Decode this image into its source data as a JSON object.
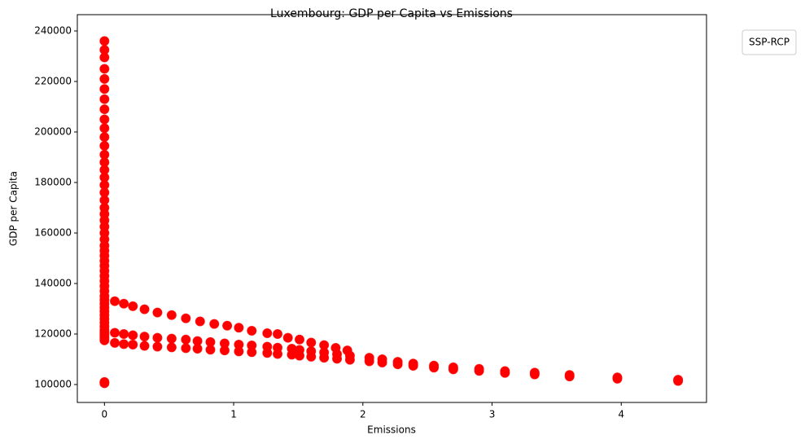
{
  "chart_data": {
    "type": "scatter",
    "title": "Luxembourg: GDP per Capita vs Emissions",
    "x_label": "Emissions",
    "y_label": "GDP per Capita",
    "legend_title": "SSP-RCP",
    "legend_position": "outside upper right",
    "color": "#ff0000",
    "xlim": [
      -0.21,
      4.66
    ],
    "xticks": [
      0,
      1,
      2,
      3,
      4
    ],
    "ylim": [
      92900,
      246450
    ],
    "yticks": [
      100000,
      120000,
      140000,
      160000,
      180000,
      200000,
      220000,
      240000
    ],
    "x": [
      0,
      0,
      0,
      0,
      0,
      0,
      0,
      0,
      0,
      0,
      0,
      0,
      0,
      0,
      0,
      0,
      0,
      0,
      0,
      0,
      0,
      0,
      0,
      0,
      0,
      0,
      0,
      0,
      0,
      0,
      0,
      0,
      0,
      0,
      0,
      0,
      0,
      0,
      0,
      0,
      0,
      0,
      0,
      0,
      0,
      0,
      0,
      0,
      0,
      0,
      0,
      0.08,
      0.15,
      0.22,
      0.31,
      0.41,
      0.52,
      0.63,
      0.74,
      0.85,
      0.95,
      1.04,
      1.14,
      1.26,
      1.34,
      1.42,
      1.51,
      1.6,
      1.7,
      1.79,
      1.88,
      0.08,
      0.15,
      0.22,
      0.31,
      0.41,
      0.52,
      0.63,
      0.72,
      0.82,
      0.93,
      1.04,
      1.14,
      1.26,
      1.34,
      1.45,
      1.51,
      1.6,
      1.7,
      1.8,
      1.9,
      2.05,
      2.15,
      2.27,
      2.39,
      2.55,
      2.7,
      2.9,
      3.1,
      3.33,
      3.6,
      3.97,
      4.44,
      0.08,
      0.15,
      0.22,
      0.31,
      0.41,
      0.52,
      0.63,
      0.72,
      0.82,
      0.93,
      1.04,
      1.14,
      1.26,
      1.34,
      1.45,
      1.51,
      1.6,
      1.7,
      1.8,
      1.9,
      2.05,
      2.15,
      2.27,
      2.39,
      2.55,
      2.7,
      2.9,
      3.1,
      3.33,
      3.6,
      3.97,
      4.44
    ],
    "values": [
      100500,
      101000,
      117500,
      118500,
      119500,
      120500,
      121500,
      123000,
      124500,
      126000,
      127500,
      129000,
      130500,
      132000,
      133500,
      135000,
      137000,
      139000,
      141000,
      143000,
      145000,
      147000,
      149000,
      151000,
      153000,
      155000,
      157500,
      160000,
      162500,
      165000,
      167500,
      170000,
      173000,
      176000,
      179000,
      182000,
      185000,
      188000,
      191000,
      194500,
      198000,
      201500,
      205000,
      209000,
      213000,
      217000,
      221000,
      225000,
      229500,
      232500,
      236000,
      133000,
      132000,
      131000,
      129800,
      128500,
      127500,
      126200,
      125000,
      124000,
      123300,
      122500,
      121300,
      120300,
      120000,
      118500,
      117800,
      116600,
      115600,
      114500,
      113500,
      120500,
      120000,
      119500,
      119000,
      118500,
      118200,
      117800,
      117200,
      116800,
      116300,
      115800,
      115500,
      115000,
      114600,
      114200,
      113700,
      113200,
      112700,
      112000,
      111400,
      110600,
      110000,
      109000,
      108300,
      107500,
      106800,
      106200,
      105300,
      104700,
      103800,
      102800,
      101900,
      116500,
      116000,
      115800,
      115300,
      115000,
      114700,
      114400,
      114200,
      113800,
      113500,
      113100,
      112800,
      112500,
      112100,
      111800,
      111400,
      111000,
      110600,
      110200,
      109800,
      109200,
      108700,
      108000,
      107400,
      106700,
      106000,
      105400,
      104600,
      104000,
      103200,
      102300,
      101400
    ]
  }
}
